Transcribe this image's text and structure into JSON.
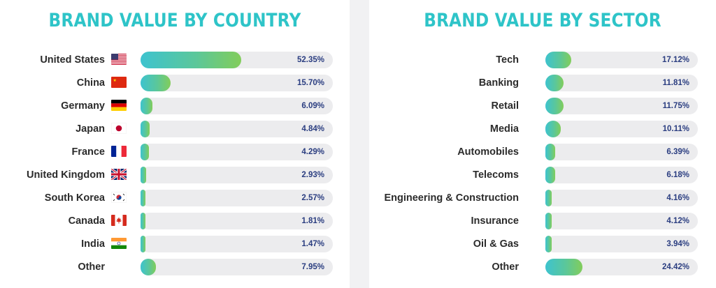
{
  "chart_data": [
    {
      "type": "bar",
      "orientation": "horizontal",
      "title": "BRAND VALUE BY COUNTRY",
      "categories": [
        "United States",
        "China",
        "Germany",
        "Japan",
        "France",
        "United Kingdom",
        "South Korea",
        "Canada",
        "India",
        "Other"
      ],
      "values": [
        52.35,
        15.7,
        6.09,
        4.84,
        4.29,
        2.93,
        2.57,
        1.81,
        1.47,
        7.95
      ],
      "value_labels": [
        "52.35%",
        "15.70%",
        "6.09%",
        "4.84%",
        "4.29%",
        "2.93%",
        "2.57%",
        "1.81%",
        "1.47%",
        "7.95%"
      ],
      "flags": [
        "flag-us-icon",
        "flag-cn-icon",
        "flag-de-icon",
        "flag-jp-icon",
        "flag-fr-icon",
        "flag-gb-icon",
        "flag-kr-icon",
        "flag-ca-icon",
        "flag-in-icon",
        ""
      ],
      "xlim": [
        0,
        100
      ]
    },
    {
      "type": "bar",
      "orientation": "horizontal",
      "title": "BRAND VALUE BY SECTOR",
      "categories": [
        "Tech",
        "Banking",
        "Retail",
        "Media",
        "Automobiles",
        "Telecoms",
        "Engineering & Construction",
        "Insurance",
        "Oil & Gas",
        "Other"
      ],
      "values": [
        17.12,
        11.81,
        11.75,
        10.11,
        6.39,
        6.18,
        4.16,
        4.12,
        3.94,
        24.42
      ],
      "value_labels": [
        "17.12%",
        "11.81%",
        "11.75%",
        "10.11%",
        "6.39%",
        "6.18%",
        "4.16%",
        "4.12%",
        "3.94%",
        "24.42%"
      ],
      "xlim": [
        0,
        100
      ]
    }
  ],
  "colors": {
    "title": "#2ec4c8",
    "bar_gradient_start": "#3dc3cf",
    "bar_gradient_end": "#82cd5a",
    "track": "#ececee",
    "percent_text": "#2a3d80",
    "label_text": "#2b2b2b"
  }
}
